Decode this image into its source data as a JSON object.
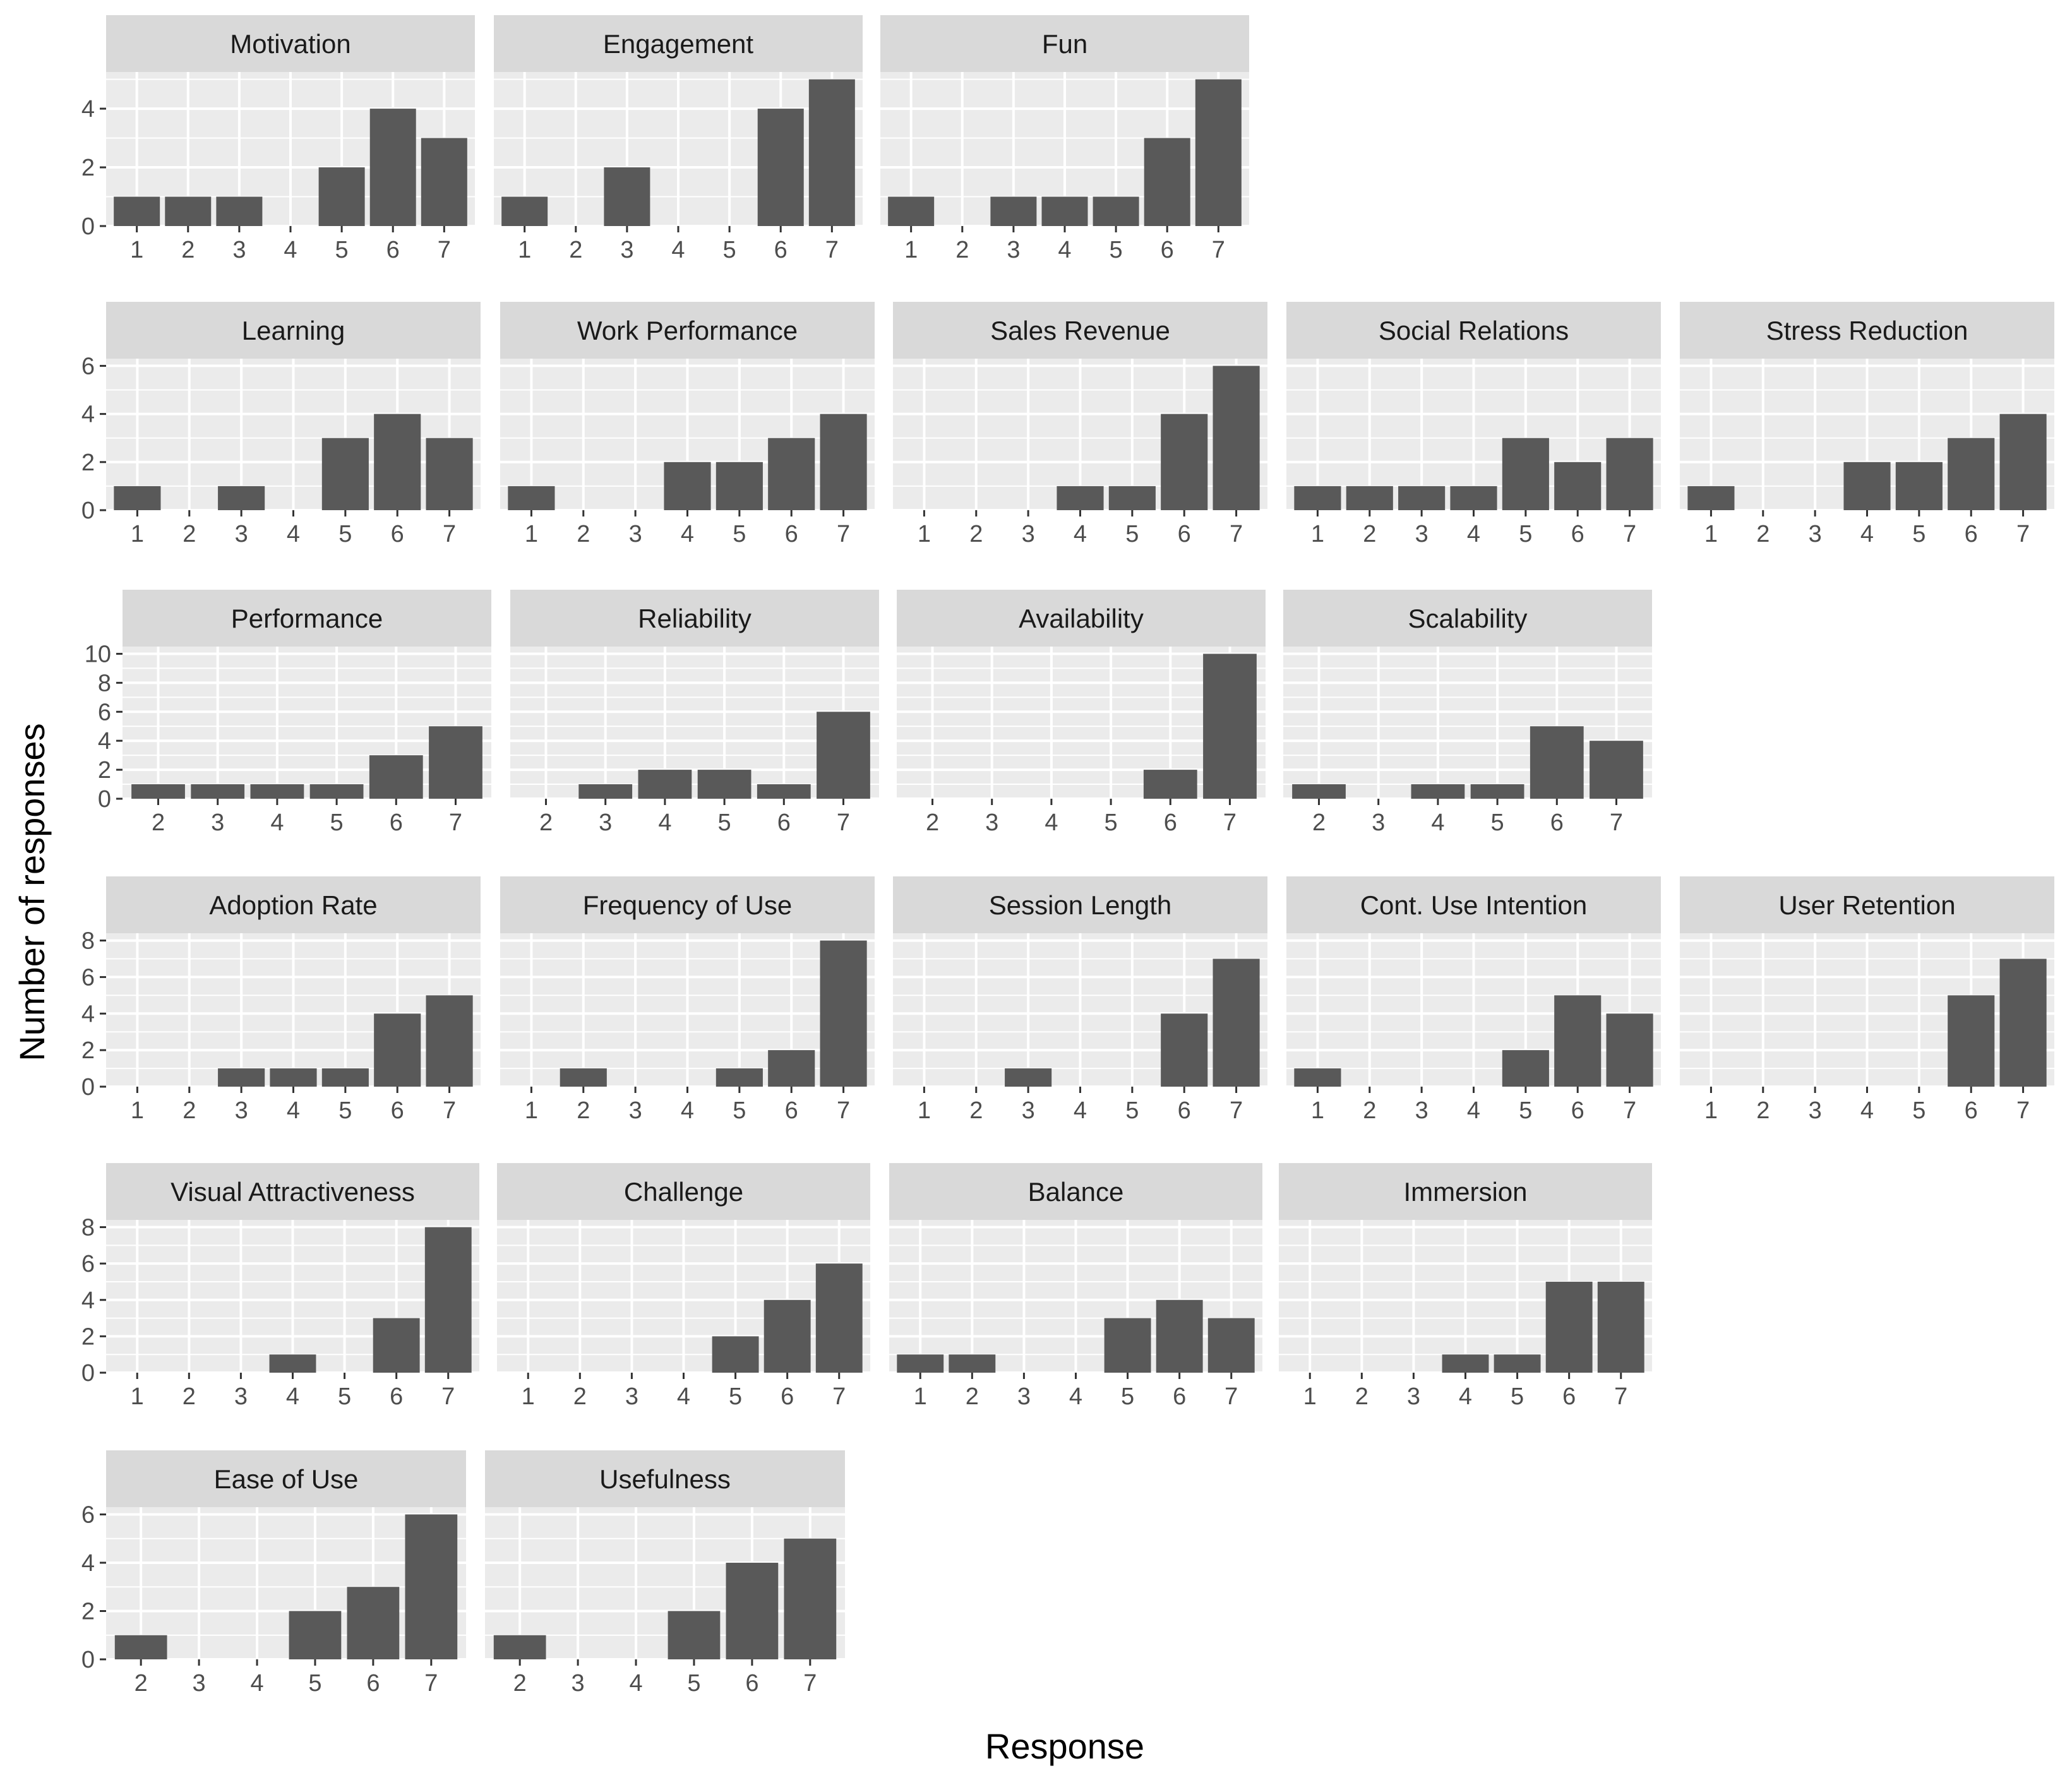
{
  "chart_data": {
    "type": "bar",
    "xlabel": "Response",
    "ylabel": "Number of responses",
    "colors": {
      "bar": "#595959",
      "panel_background": "#ebebeb",
      "strip_background": "#d9d9d9",
      "grid": "#ffffff"
    },
    "rows": [
      {
        "ylim": [
          0,
          5.25
        ],
        "yticks": [
          0,
          2,
          4
        ],
        "panels": [
          {
            "title": "Motivation",
            "categories": [
              1,
              2,
              3,
              4,
              5,
              6,
              7
            ],
            "values": [
              1,
              1,
              1,
              0,
              2,
              4,
              3
            ]
          },
          {
            "title": "Engagement",
            "categories": [
              1,
              2,
              3,
              4,
              5,
              6,
              7
            ],
            "values": [
              1,
              0,
              2,
              0,
              0,
              4,
              5
            ]
          },
          {
            "title": "Fun",
            "categories": [
              1,
              2,
              3,
              4,
              5,
              6,
              7
            ],
            "values": [
              1,
              0,
              1,
              1,
              1,
              3,
              5
            ]
          }
        ]
      },
      {
        "ylim": [
          0,
          6.3
        ],
        "yticks": [
          0,
          2,
          4,
          6
        ],
        "panels": [
          {
            "title": "Learning",
            "categories": [
              1,
              2,
              3,
              4,
              5,
              6,
              7
            ],
            "values": [
              1,
              0,
              1,
              0,
              3,
              4,
              3
            ]
          },
          {
            "title": "Work Performance",
            "categories": [
              1,
              2,
              3,
              4,
              5,
              6,
              7
            ],
            "values": [
              1,
              0,
              0,
              2,
              2,
              3,
              4
            ]
          },
          {
            "title": "Sales Revenue",
            "categories": [
              1,
              2,
              3,
              4,
              5,
              6,
              7
            ],
            "values": [
              0,
              0,
              0,
              1,
              1,
              4,
              6
            ]
          },
          {
            "title": "Social Relations",
            "categories": [
              1,
              2,
              3,
              4,
              5,
              6,
              7
            ],
            "values": [
              1,
              1,
              1,
              1,
              3,
              2,
              3
            ]
          },
          {
            "title": "Stress Reduction",
            "categories": [
              1,
              2,
              3,
              4,
              5,
              6,
              7
            ],
            "values": [
              1,
              0,
              0,
              2,
              2,
              3,
              4
            ]
          }
        ]
      },
      {
        "ylim": [
          0,
          10.5
        ],
        "yticks": [
          0,
          2,
          4,
          6,
          8,
          10
        ],
        "panels": [
          {
            "title": "Performance",
            "categories": [
              2,
              3,
              4,
              5,
              6,
              7
            ],
            "values": [
              1,
              1,
              1,
              1,
              3,
              5
            ]
          },
          {
            "title": "Reliability",
            "categories": [
              2,
              3,
              4,
              5,
              6,
              7
            ],
            "values": [
              0,
              1,
              2,
              2,
              1,
              6
            ]
          },
          {
            "title": "Availability",
            "categories": [
              2,
              3,
              4,
              5,
              6,
              7
            ],
            "values": [
              0,
              0,
              0,
              0,
              2,
              10
            ]
          },
          {
            "title": "Scalability",
            "categories": [
              2,
              3,
              4,
              5,
              6,
              7
            ],
            "values": [
              1,
              0,
              1,
              1,
              5,
              4
            ]
          }
        ]
      },
      {
        "ylim": [
          0,
          8.4
        ],
        "yticks": [
          0,
          2,
          4,
          6,
          8
        ],
        "panels": [
          {
            "title": "Adoption Rate",
            "categories": [
              1,
              2,
              3,
              4,
              5,
              6,
              7
            ],
            "values": [
              0,
              0,
              1,
              1,
              1,
              4,
              5
            ]
          },
          {
            "title": "Frequency of Use",
            "categories": [
              1,
              2,
              3,
              4,
              5,
              6,
              7
            ],
            "values": [
              0,
              1,
              0,
              0,
              1,
              2,
              8
            ]
          },
          {
            "title": "Session Length",
            "categories": [
              1,
              2,
              3,
              4,
              5,
              6,
              7
            ],
            "values": [
              0,
              0,
              1,
              0,
              0,
              4,
              7
            ]
          },
          {
            "title": "Cont. Use Intention",
            "categories": [
              1,
              2,
              3,
              4,
              5,
              6,
              7
            ],
            "values": [
              1,
              0,
              0,
              0,
              2,
              5,
              4
            ]
          },
          {
            "title": "User Retention",
            "categories": [
              1,
              2,
              3,
              4,
              5,
              6,
              7
            ],
            "values": [
              0,
              0,
              0,
              0,
              0,
              5,
              7
            ]
          }
        ]
      },
      {
        "ylim": [
          0,
          8.4
        ],
        "yticks": [
          0,
          2,
          4,
          6,
          8
        ],
        "panels": [
          {
            "title": "Visual Attractiveness",
            "categories": [
              1,
              2,
              3,
              4,
              5,
              6,
              7
            ],
            "values": [
              0,
              0,
              0,
              1,
              0,
              3,
              8
            ]
          },
          {
            "title": "Challenge",
            "categories": [
              1,
              2,
              3,
              4,
              5,
              6,
              7
            ],
            "values": [
              0,
              0,
              0,
              0,
              2,
              4,
              6
            ]
          },
          {
            "title": "Balance",
            "categories": [
              1,
              2,
              3,
              4,
              5,
              6,
              7
            ],
            "values": [
              1,
              1,
              0,
              0,
              3,
              4,
              3
            ]
          },
          {
            "title": "Immersion",
            "categories": [
              1,
              2,
              3,
              4,
              5,
              6,
              7
            ],
            "values": [
              0,
              0,
              0,
              1,
              1,
              5,
              5
            ]
          }
        ]
      },
      {
        "ylim": [
          0,
          6.3
        ],
        "yticks": [
          0,
          2,
          4,
          6
        ],
        "panels": [
          {
            "title": "Ease of Use",
            "categories": [
              2,
              3,
              4,
              5,
              6,
              7
            ],
            "values": [
              1,
              0,
              0,
              2,
              3,
              6
            ]
          },
          {
            "title": "Usefulness",
            "categories": [
              2,
              3,
              4,
              5,
              6,
              7
            ],
            "values": [
              1,
              0,
              0,
              2,
              4,
              5
            ]
          }
        ]
      }
    ]
  }
}
